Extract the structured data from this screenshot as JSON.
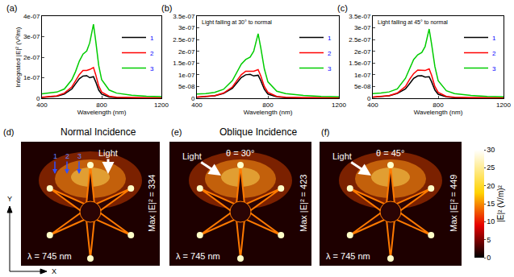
{
  "chart_data": [
    {
      "panel": "(a)",
      "type": "line",
      "x_label": "Wavelength (nm)",
      "y_label": "Integrated |E|² (V²/m)",
      "xlim": [
        400,
        1200
      ],
      "xticks": [
        400,
        800,
        1200
      ],
      "ylim": [
        0,
        4e-07
      ],
      "yticks": [
        0,
        {
          "value": 1e-07,
          "label": "1e-07"
        },
        {
          "value": 2e-07,
          "label": "2e-07"
        },
        {
          "value": 3e-07,
          "label": "3e-07"
        },
        {
          "value": 4e-07,
          "label": "4e-07"
        }
      ],
      "legend": "upper right",
      "x": [
        400,
        450,
        500,
        550,
        600,
        625,
        650,
        675,
        700,
        720,
        745,
        760,
        780,
        800,
        850,
        900,
        1000,
        1100,
        1200
      ],
      "series": [
        {
          "name": "1",
          "color": "#000000",
          "values": [
            4e-09,
            6e-09,
            1e-08,
            2e-08,
            4.5e-08,
            7e-08,
            9.5e-08,
            1.08e-07,
            1.1e-07,
            1e-07,
            1.05e-07,
            8e-08,
            4e-08,
            2e-08,
            6e-09,
            3e-09,
            2e-09,
            2e-09,
            2e-09
          ]
        },
        {
          "name": "2",
          "color": "#ff0000",
          "values": [
            5e-09,
            8e-09,
            1.2e-08,
            2.5e-08,
            5.5e-08,
            8.5e-08,
            1.15e-07,
            1.35e-07,
            1.35e-07,
            1.4e-07,
            1.5e-07,
            1.15e-07,
            6e-08,
            3e-08,
            1e-08,
            5e-09,
            3e-09,
            2e-09,
            2e-09
          ]
        },
        {
          "name": "3",
          "color": "#00cc00",
          "values": [
            2.2e-08,
            2.5e-08,
            3e-08,
            4.5e-08,
            9e-08,
            1.3e-07,
            1.8e-07,
            2.15e-07,
            2.3e-07,
            2.7e-07,
            3.6e-07,
            2.8e-07,
            1.6e-07,
            9e-08,
            4e-08,
            2.5e-08,
            1.5e-08,
            1e-08,
            8e-09
          ]
        }
      ]
    },
    {
      "panel": "(b)",
      "type": "line",
      "x_label": "Wavelength (nm)",
      "annotation": "Light falling at 30° to normal",
      "xlim": [
        400,
        1200
      ],
      "xticks": [
        400,
        800,
        1200
      ],
      "ylim": [
        0,
        3.5e-07
      ],
      "yticks": [
        0,
        {
          "value": 5e-08,
          "label": "5e-08"
        },
        {
          "value": 1e-07,
          "label": "1e-07"
        },
        {
          "value": 1.5e-07,
          "label": "1.5e-07"
        },
        {
          "value": 2e-07,
          "label": "2e-07"
        },
        {
          "value": 2.5e-07,
          "label": "2.5e-07"
        },
        {
          "value": 3e-07,
          "label": "3e-07"
        },
        {
          "value": 3.5e-07,
          "label": "3.5e-07"
        }
      ],
      "legend": "upper right",
      "x": [
        400,
        450,
        500,
        550,
        600,
        625,
        650,
        675,
        700,
        720,
        745,
        760,
        780,
        800,
        850,
        900,
        1000,
        1100,
        1200
      ],
      "series": [
        {
          "name": "1",
          "color": "#000000",
          "values": [
            4e-09,
            6e-09,
            1e-08,
            2e-08,
            4.2e-08,
            6.5e-08,
            8.8e-08,
            1e-07,
            1.02e-07,
            9.5e-08,
            9.8e-08,
            7.5e-08,
            3.8e-08,
            1.8e-08,
            6e-09,
            3e-09,
            2e-09,
            2e-09,
            2e-09
          ]
        },
        {
          "name": "2",
          "color": "#ff0000",
          "values": [
            5e-09,
            7e-09,
            1.1e-08,
            2.2e-08,
            4.8e-08,
            7.5e-08,
            1e-07,
            1.15e-07,
            1.15e-07,
            1.15e-07,
            1.22e-07,
            9.5e-08,
            5e-08,
            2.5e-08,
            8e-09,
            4e-09,
            3e-09,
            2e-09,
            2e-09
          ]
        },
        {
          "name": "3",
          "color": "#00cc00",
          "values": [
            1.8e-08,
            2e-08,
            2.5e-08,
            3.8e-08,
            7.5e-08,
            1.1e-07,
            1.45e-07,
            1.65e-07,
            1.75e-07,
            2e-07,
            2.75e-07,
            2.15e-07,
            1.25e-07,
            7e-08,
            3e-08,
            2e-08,
            1.2e-08,
            8e-09,
            6e-09
          ]
        }
      ]
    },
    {
      "panel": "(c)",
      "type": "line",
      "x_label": "Wavelength (nm)",
      "annotation": "Light falling at 45° to normal",
      "xlim": [
        400,
        1200
      ],
      "xticks": [
        400,
        800,
        1200
      ],
      "ylim": [
        0,
        3.5e-07
      ],
      "yticks": [
        0,
        {
          "value": 5e-08,
          "label": "5e-08"
        },
        {
          "value": 1e-07,
          "label": "1e-07"
        },
        {
          "value": 1.5e-07,
          "label": "1.5e-07"
        },
        {
          "value": 2e-07,
          "label": "2e-07"
        },
        {
          "value": 2.5e-07,
          "label": "2.5e-07"
        },
        {
          "value": 3e-07,
          "label": "3e-07"
        },
        {
          "value": 3.5e-07,
          "label": "3.5e-07"
        }
      ],
      "legend": "upper right",
      "x": [
        400,
        450,
        500,
        550,
        600,
        625,
        650,
        675,
        700,
        720,
        745,
        760,
        780,
        800,
        850,
        900,
        1000,
        1100,
        1200
      ],
      "series": [
        {
          "name": "1",
          "color": "#000000",
          "values": [
            4e-09,
            6e-09,
            1e-08,
            2e-08,
            4e-08,
            6.2e-08,
            8.5e-08,
            9.5e-08,
            9.6e-08,
            9e-08,
            9.2e-08,
            7e-08,
            3.5e-08,
            1.7e-08,
            6e-09,
            3e-09,
            2e-09,
            2e-09,
            2e-09
          ]
        },
        {
          "name": "2",
          "color": "#ff0000",
          "values": [
            5e-09,
            7e-09,
            1.1e-08,
            2.2e-08,
            5e-08,
            8e-08,
            1.05e-07,
            1.2e-07,
            1.18e-07,
            1.18e-07,
            1.25e-07,
            9.8e-08,
            5e-08,
            2.5e-08,
            8e-09,
            4e-09,
            3e-09,
            2e-09,
            2e-09
          ]
        },
        {
          "name": "3",
          "color": "#00cc00",
          "values": [
            2e-08,
            2.2e-08,
            2.7e-08,
            4e-08,
            8.5e-08,
            1.25e-07,
            1.65e-07,
            1.85e-07,
            1.95e-07,
            2.2e-07,
            2.95e-07,
            2.3e-07,
            1.35e-07,
            7.5e-08,
            3.2e-08,
            2e-08,
            1.2e-08,
            8e-09,
            6e-09
          ]
        }
      ]
    },
    {
      "type": "field_map",
      "group_title": "Oblique Incidence",
      "panels": [
        {
          "panel": "(d)",
          "title": "Normal Incidence",
          "light": "Light",
          "beams": [
            "1",
            "2",
            "3"
          ],
          "wavelength": "λ = 745 nm",
          "max": "Max |E|² = 334",
          "y_arrow": "Y",
          "x_arrow": "X"
        },
        {
          "panel": "(e)",
          "light": "Light",
          "angle": "θ = 30°",
          "wavelength": "λ = 745 nm",
          "max": "Max |E|² = 423"
        },
        {
          "panel": "(f)",
          "light": "Light",
          "angle": "θ = 45°",
          "wavelength": "λ = 745 nm",
          "max": "Max |E|² = 449"
        }
      ],
      "colorbar": {
        "title": "|E|² (V/m)²",
        "range": [
          0,
          30
        ],
        "ticks": [
          0,
          5,
          10,
          15,
          20,
          25,
          30
        ]
      }
    }
  ]
}
